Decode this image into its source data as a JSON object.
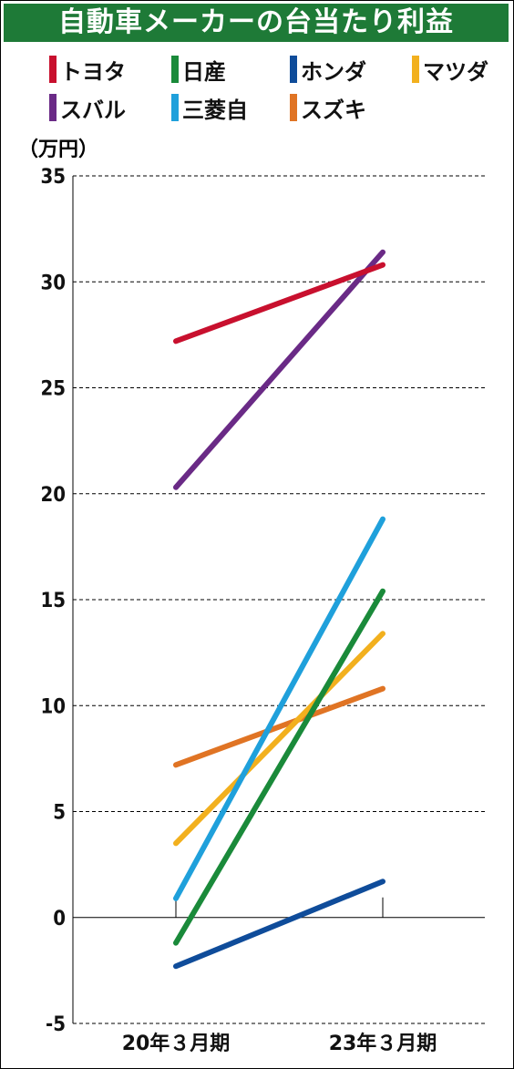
{
  "title": "自動車メーカーの台当たり利益",
  "unit_label": "（万円）",
  "chart_data": {
    "type": "line",
    "categories": [
      "20年３月期",
      "23年３月期"
    ],
    "ylim": [
      -5,
      35
    ],
    "yticks": [
      -5,
      0,
      5,
      10,
      15,
      20,
      25,
      30,
      35
    ],
    "grid": "dashed horizontal",
    "legend_position": "top",
    "series": [
      {
        "name": "トヨタ",
        "color": "#c8102e",
        "values": [
          27.2,
          30.8
        ]
      },
      {
        "name": "日産",
        "color": "#1a8a3a",
        "values": [
          -1.2,
          15.4
        ]
      },
      {
        "name": "ホンダ",
        "color": "#0f4c9a",
        "values": [
          -2.3,
          1.7
        ]
      },
      {
        "name": "マツダ",
        "color": "#f2b01e",
        "values": [
          3.5,
          13.4
        ]
      },
      {
        "name": "スバル",
        "color": "#6a2a86",
        "values": [
          20.3,
          31.4
        ]
      },
      {
        "name": "三菱自",
        "color": "#1fa0db",
        "values": [
          0.9,
          18.8
        ]
      },
      {
        "name": "スズキ",
        "color": "#e07424",
        "values": [
          7.2,
          10.8
        ]
      }
    ]
  }
}
